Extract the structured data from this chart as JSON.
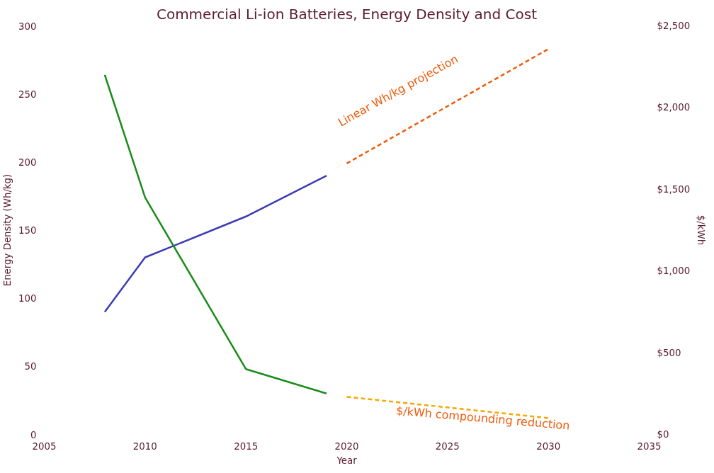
{
  "chart_data": {
    "type": "line",
    "title": "Commercial Li-ion Batteries, Energy Density and Cost",
    "xlabel": "Year",
    "ylabel": "Energy Density (Wh/kg)",
    "y2label": "$/kWh",
    "series": [
      {
        "color": "#3c3cb4",
        "x": [
          2008,
          2010,
          2015,
          2019
        ],
        "values": [
          90,
          130,
          160,
          190
        ],
        "line_style": "solid"
      },
      {
        "color": "#f05a0a",
        "x": [
          2020,
          2030
        ],
        "values": [
          199,
          283
        ],
        "line_style": "dashed"
      },
      {
        "color": "#1a8c1a",
        "x": [
          2008,
          2010,
          2015,
          2019
        ],
        "values": [
          2200,
          1450,
          400,
          250
        ],
        "axis": "y2",
        "line_style": "solid"
      },
      {
        "color": "#f5a800",
        "x": [
          2020,
          2030
        ],
        "values": [
          230,
          100
        ],
        "axis": "y2",
        "line_style": "dashed"
      }
    ],
    "annotations": [
      "Linear Wh/kg projection",
      "$/kWh compounding reduction"
    ],
    "xlim": [
      2005,
      2035
    ],
    "xticks": [
      2005,
      2010,
      2015,
      2020,
      2025,
      2030,
      2035
    ],
    "ylim": [
      0,
      300
    ],
    "yticks": [
      0,
      50,
      100,
      150,
      200,
      250,
      300
    ],
    "y2lim": [
      0,
      2500
    ],
    "y2ticks": [
      {
        "value": 0,
        "label": "$0"
      },
      {
        "value": 500,
        "label": "$500"
      },
      {
        "value": 1000,
        "label": "$1,000"
      },
      {
        "value": 1500,
        "label": "$1,500"
      },
      {
        "value": 2000,
        "label": "$2,000"
      },
      {
        "value": 2500,
        "label": "$2,500"
      }
    ],
    "grid": false
  }
}
